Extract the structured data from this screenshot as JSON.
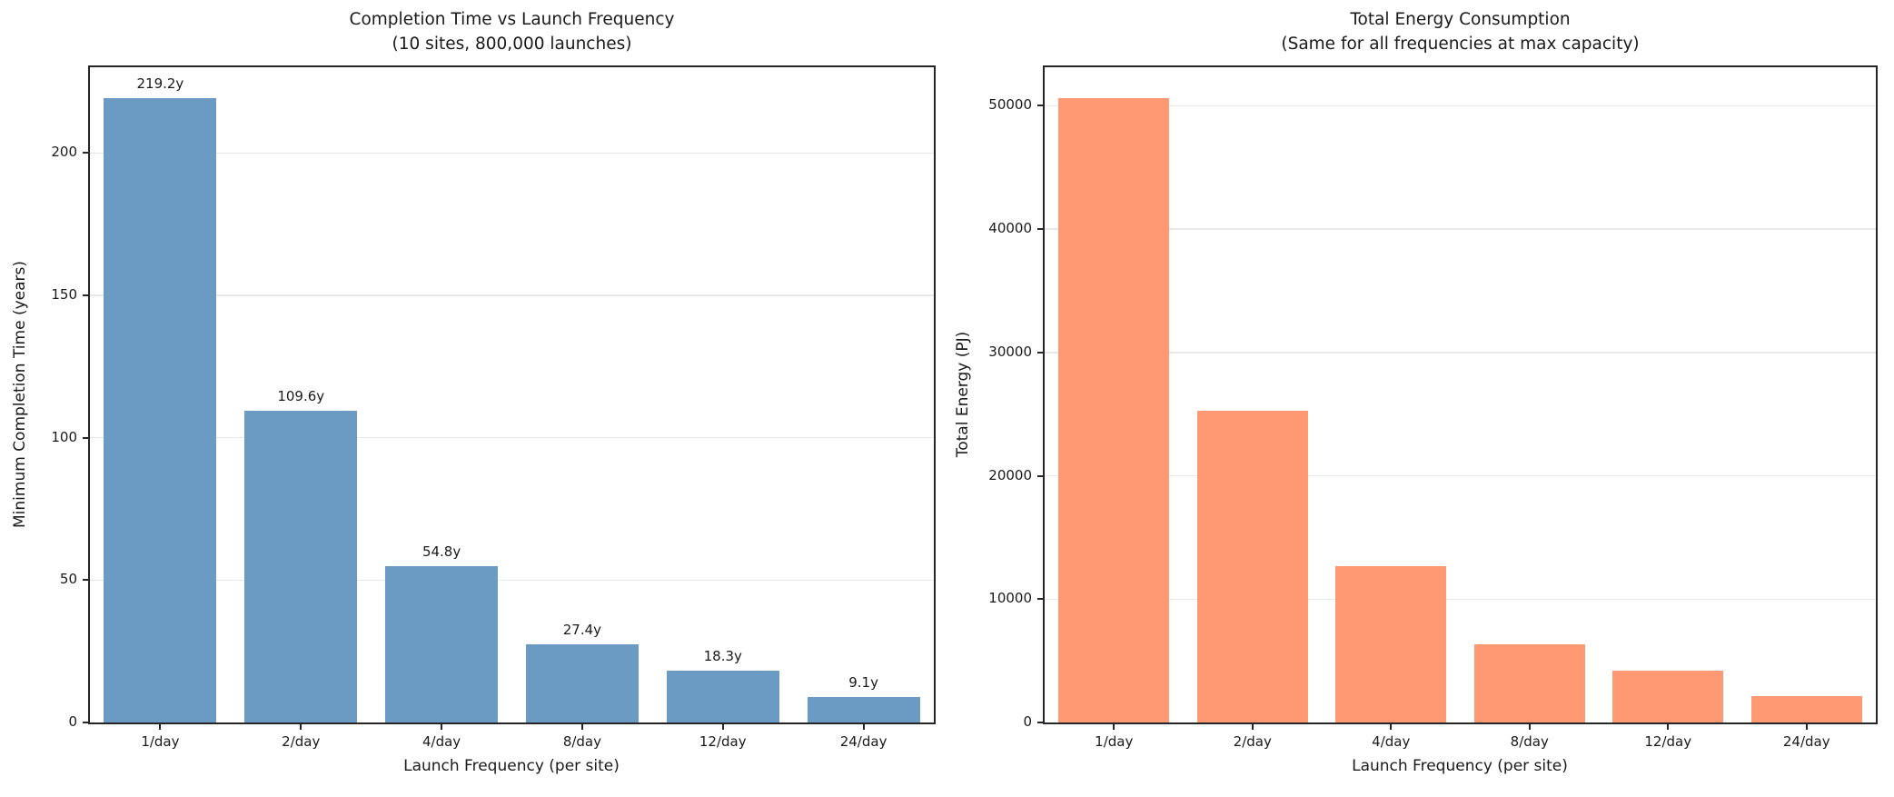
{
  "figure": {
    "background_color": "#ffffff",
    "text_color": "#1a1a1a",
    "spine_color": "#262626",
    "gridline_color": "#e8e8e8"
  },
  "chart_data": [
    {
      "type": "bar",
      "title": "Completion Time vs Launch Frequency",
      "subtitle": "(10 sites, 800,000 launches)",
      "xlabel": "Launch Frequency (per site)",
      "ylabel": "Minimum Completion Time (years)",
      "categories": [
        "1/day",
        "2/day",
        "4/day",
        "8/day",
        "12/day",
        "24/day"
      ],
      "values": [
        219.2,
        109.6,
        54.8,
        27.4,
        18.3,
        9.1
      ],
      "bar_labels": [
        "219.2y",
        "109.6y",
        "54.8y",
        "27.4y",
        "18.3y",
        "9.1y"
      ],
      "yticks": [
        0,
        50,
        100,
        150,
        200
      ],
      "ylim": [
        0,
        230.16
      ],
      "bar_color": "#6b9bc3",
      "bar_width_fraction": 0.8,
      "grid": true,
      "legend": "none"
    },
    {
      "type": "bar",
      "title": "Total Energy Consumption",
      "subtitle": "(Same for all frequencies at max capacity)",
      "xlabel": "Launch Frequency (per site)",
      "ylabel": "Total Energy (PJ)",
      "categories": [
        "1/day",
        "2/day",
        "4/day",
        "8/day",
        "12/day",
        "24/day"
      ],
      "values": [
        50600,
        25300,
        12650,
        6325,
        4217,
        2108
      ],
      "bar_labels": null,
      "yticks": [
        0,
        10000,
        20000,
        30000,
        40000,
        50000
      ],
      "ylim": [
        0,
        53130
      ],
      "bar_color": "#ff9973",
      "bar_width_fraction": 0.8,
      "grid": true,
      "legend": "none"
    }
  ]
}
